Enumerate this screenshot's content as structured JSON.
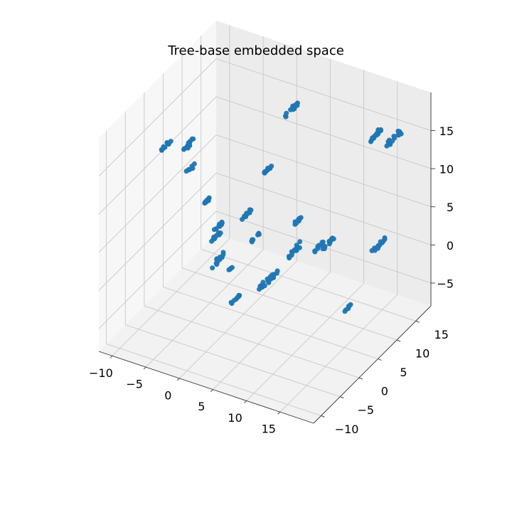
{
  "chart_data": {
    "type": "scatter",
    "projection": "3d",
    "title": "Tree-base embedded space",
    "xlabel": "",
    "ylabel": "",
    "zlabel": "",
    "xlim": [
      -12,
      20
    ],
    "ylim": [
      -12,
      19
    ],
    "zlim": [
      -8,
      20
    ],
    "x_ticks": [
      -10,
      -5,
      0,
      5,
      10,
      15
    ],
    "y_ticks": [
      -10,
      -5,
      0,
      5,
      10,
      15
    ],
    "z_ticks": [
      -5,
      0,
      5,
      10,
      15
    ],
    "x_tick_labels": [
      "−10",
      "−5",
      "0",
      "5",
      "10",
      "15"
    ],
    "y_tick_labels": [
      "−10",
      "−5",
      "0",
      "5",
      "10",
      "15"
    ],
    "z_tick_labels": [
      "−5",
      "0",
      "5",
      "10",
      "15"
    ],
    "grid": true,
    "legend": "none",
    "marker_color": "#1f77b4",
    "clusters": [
      {
        "center": [
          -9.1,
          0.5,
          13.6
        ],
        "spread": 0.6,
        "count": 10
      },
      {
        "center": [
          -6.5,
          1.8,
          13.9
        ],
        "spread": 0.8,
        "count": 14
      },
      {
        "center": [
          -6.8,
          3.2,
          10.1
        ],
        "spread": 0.6,
        "count": 8
      },
      {
        "center": [
          -5.4,
          5.0,
          5.3
        ],
        "spread": 0.5,
        "count": 8
      },
      {
        "center": [
          -3.3,
          3.8,
          1.9
        ],
        "spread": 0.6,
        "count": 10
      },
      {
        "center": [
          -5.1,
          7.4,
          0.8
        ],
        "spread": 0.5,
        "count": 10
      },
      {
        "center": [
          -1.3,
          1.4,
          1.0
        ],
        "spread": 0.6,
        "count": 10
      },
      {
        "center": [
          3.7,
          10.6,
          16.9
        ],
        "spread": 0.8,
        "count": 14
      },
      {
        "center": [
          2.1,
          7.9,
          10.3
        ],
        "spread": 0.6,
        "count": 12
      },
      {
        "center": [
          1.1,
          3.9,
          5.9
        ],
        "spread": 0.5,
        "count": 10
      },
      {
        "center": [
          1.6,
          5.2,
          2.3
        ],
        "spread": 0.5,
        "count": 8
      },
      {
        "center": [
          -2.2,
          1.2,
          -0.4
        ],
        "spread": 0.4,
        "count": 4
      },
      {
        "center": [
          1.0,
          -0.5,
          0.8
        ],
        "spread": 0.4,
        "count": 4
      },
      {
        "center": [
          6.7,
          7.9,
          5.0
        ],
        "spread": 0.5,
        "count": 8
      },
      {
        "center": [
          15.8,
          11.8,
          16.6
        ],
        "spread": 0.8,
        "count": 14
      },
      {
        "center": [
          16.7,
          14.7,
          15.0
        ],
        "spread": 0.8,
        "count": 16
      },
      {
        "center": [
          9.2,
          10.8,
          1.0
        ],
        "spread": 0.7,
        "count": 12
      },
      {
        "center": [
          7.6,
          11.5,
          -0.1
        ],
        "spread": 0.5,
        "count": 8
      },
      {
        "center": [
          4.4,
          10.8,
          -1.1
        ],
        "spread": 0.8,
        "count": 14
      },
      {
        "center": [
          16.5,
          11.6,
          2.7
        ],
        "spread": 0.7,
        "count": 14
      },
      {
        "center": [
          5.6,
          1.6,
          -0.2
        ],
        "spread": 0.9,
        "count": 22
      },
      {
        "center": [
          2.8,
          -2.1,
          -1.8
        ],
        "spread": 0.5,
        "count": 8
      },
      {
        "center": [
          14.0,
          7.8,
          -4.4
        ],
        "spread": 0.5,
        "count": 6
      }
    ]
  }
}
